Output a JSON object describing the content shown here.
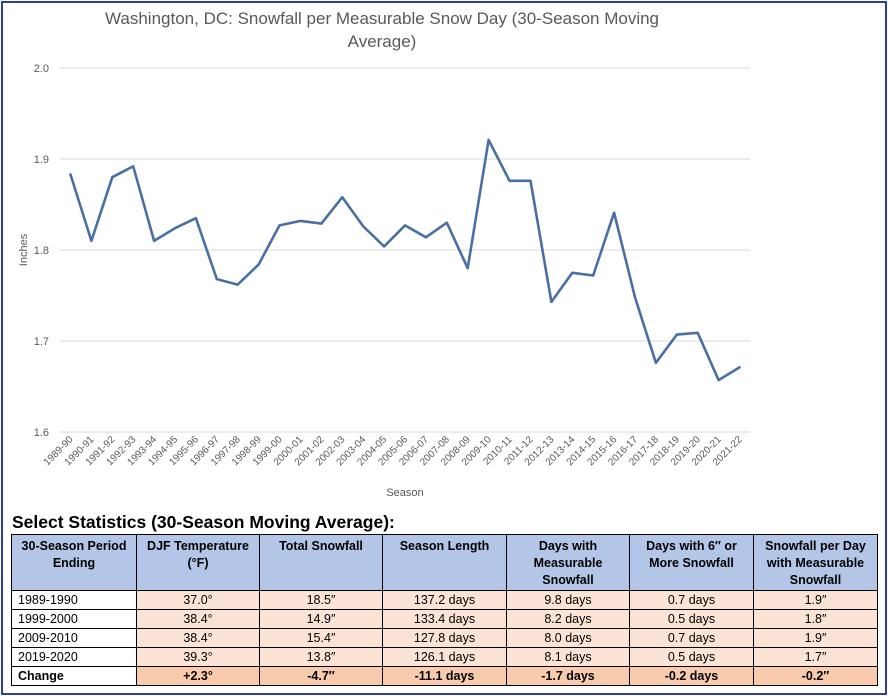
{
  "chart_data": {
    "type": "line",
    "title": "Washington, DC: Snowfall per Measurable Snow Day (30-Season Moving Average)",
    "title_lines": [
      "Washington, DC: Snowfall per Measurable Snow Day (30-Season Moving",
      "Average)"
    ],
    "xlabel": "Season",
    "ylabel": "Inches",
    "ylim": [
      1.6,
      2.0
    ],
    "yticks": [
      "1.6",
      "1.7",
      "1.8",
      "1.9",
      "2.0"
    ],
    "grid": true,
    "line_color": "#4a6fa5",
    "categories": [
      "1989-90",
      "1990-91",
      "1991-92",
      "1992-93",
      "1993-94",
      "1994-95",
      "1995-96",
      "1996-97",
      "1997-98",
      "1998-99",
      "1999-00",
      "2000-01",
      "2001-02",
      "2002-03",
      "2003-04",
      "2004-05",
      "2005-06",
      "2006-07",
      "2007-08",
      "2008-09",
      "2009-10",
      "2010-11",
      "2011-12",
      "2012-13",
      "2013-14",
      "2014-15",
      "2015-16",
      "2016-17",
      "2017-18",
      "2018-19",
      "2019-20",
      "2020-21",
      "2021-22"
    ],
    "values": [
      1.883,
      1.81,
      1.88,
      1.892,
      1.81,
      1.824,
      1.835,
      1.768,
      1.762,
      1.784,
      1.827,
      1.832,
      1.829,
      1.858,
      1.826,
      1.804,
      1.827,
      1.814,
      1.83,
      1.78,
      1.921,
      1.876,
      1.876,
      1.743,
      1.775,
      1.772,
      1.841,
      1.748,
      1.676,
      1.707,
      1.709,
      1.657,
      1.671
    ]
  },
  "stats": {
    "heading": "Select Statistics (30-Season Moving Average):",
    "headers": [
      "30-Season Period Ending",
      "DJF Temperature (°F)",
      "Total Snowfall",
      "Season Length",
      "Days with Measurable Snowfall",
      "Days with 6″ or More Snowfall",
      "Snowfall per Day with Measurable Snowfall"
    ],
    "rows": [
      [
        "1989-1990",
        "37.0°",
        "18.5″",
        "137.2 days",
        "9.8 days",
        "0.7 days",
        "1.9″"
      ],
      [
        "1999-2000",
        "38.4°",
        "14.9″",
        "133.4 days",
        "8.2 days",
        "0.5 days",
        "1.8″"
      ],
      [
        "2009-2010",
        "38.4°",
        "15.4″",
        "127.8 days",
        "8.0 days",
        "0.7 days",
        "1.9″"
      ],
      [
        "2019-2020",
        "39.3°",
        "13.8″",
        "126.1 days",
        "8.1 days",
        "0.5 days",
        "1.7″"
      ]
    ],
    "change": [
      "Change",
      "+2.3°",
      "-4.7″",
      "-11.1 days",
      "-1.7 days",
      "-0.2 days",
      "-0.2″"
    ]
  }
}
